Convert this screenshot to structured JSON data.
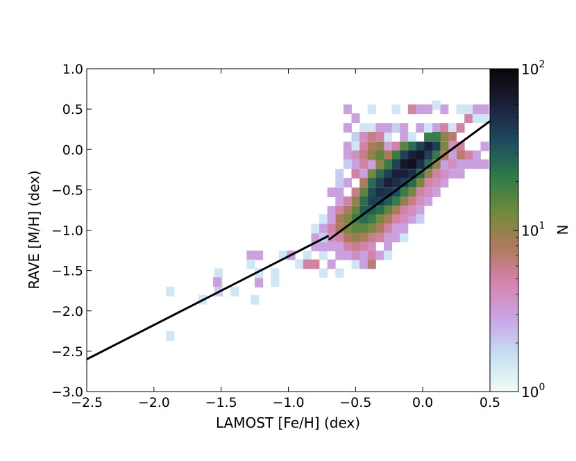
{
  "chart_data": {
    "type": "heatmap",
    "xlabel": "LAMOST [Fe/H] (dex)",
    "ylabel": "RAVE [M/H] (dex)",
    "xlim": [
      -2.5,
      0.5
    ],
    "ylim": [
      -3.0,
      1.0
    ],
    "x_ticks": [
      -2.5,
      -2.0,
      -1.5,
      -1.0,
      -0.5,
      0.0,
      0.5
    ],
    "x_tick_labels": [
      "−2.5",
      "−2.0",
      "−1.5",
      "−1.0",
      "−0.5",
      "0.0",
      "0.5"
    ],
    "y_ticks": [
      -3.0,
      -2.5,
      -2.0,
      -1.5,
      -1.0,
      -0.5,
      0.0,
      0.5,
      1.0
    ],
    "y_tick_labels": [
      "−3.0",
      "−2.5",
      "−2.0",
      "−1.5",
      "−1.0",
      "−0.5",
      "0.0",
      "0.5",
      "1.0"
    ],
    "grid": false,
    "colorbar": {
      "label": "N",
      "scale": "log",
      "range": [
        1,
        100
      ],
      "ticks": [
        {
          "value": 1,
          "base": "10",
          "exp": "0"
        },
        {
          "value": 10,
          "base": "10",
          "exp": "1"
        },
        {
          "value": 100,
          "base": "10",
          "exp": "2"
        }
      ],
      "colormap_stops": [
        "#f0fbf4",
        "#c6e2f4",
        "#c8a6e6",
        "#d884b0",
        "#b07a60",
        "#6f8a3a",
        "#2f7a4a",
        "#1e4a5e",
        "#1c1f3a",
        "#0a0508"
      ]
    },
    "lines": [
      {
        "x": [
          -2.5,
          -0.7
        ],
        "y": [
          -2.6,
          -1.07
        ]
      },
      {
        "x": [
          -0.7,
          0.5
        ],
        "y": [
          -1.12,
          0.35
        ]
      }
    ],
    "bins": [
      [
        -1.88,
        -1.76,
        1.5
      ],
      [
        -1.88,
        -2.31,
        1.5
      ],
      [
        -1.64,
        -1.86,
        1.5
      ],
      [
        -1.52,
        -1.53,
        1.5
      ],
      [
        -1.52,
        -1.64,
        1.5
      ],
      [
        -1.52,
        -1.76,
        2
      ],
      [
        -1.4,
        -1.76,
        1.5
      ],
      [
        -1.28,
        -1.31,
        3
      ],
      [
        -1.22,
        -1.31,
        3
      ],
      [
        -1.22,
        -1.53,
        1.5
      ],
      [
        -1.22,
        -1.65,
        3
      ],
      [
        -1.25,
        -1.86,
        1.5
      ],
      [
        -1.1,
        -1.53,
        1.5
      ],
      [
        -1.1,
        -1.64,
        1.5
      ],
      [
        -1.04,
        -1.31,
        1.5
      ],
      [
        -0.98,
        -1.31,
        3
      ],
      [
        -0.92,
        -1.42,
        1.5
      ],
      [
        -0.86,
        -1.31,
        1.5
      ],
      [
        -0.86,
        -1.42,
        5
      ],
      [
        -0.8,
        -1.42,
        5
      ],
      [
        -0.74,
        -1.31,
        1.5
      ],
      [
        -0.74,
        -1.53,
        1.5
      ],
      [
        -0.8,
        -1.09,
        3
      ],
      [
        -0.8,
        -0.98,
        1.5
      ],
      [
        -0.8,
        -1.2,
        3
      ],
      [
        -0.74,
        -0.86,
        1.5
      ],
      [
        -0.74,
        -1.2,
        3
      ],
      [
        -0.68,
        -0.76,
        3
      ],
      [
        -0.68,
        -1.42,
        3
      ],
      [
        -0.62,
        -1.53,
        1.5
      ],
      [
        -1.28,
        -1.42,
        1.5
      ],
      [
        -0.62,
        -1.31,
        3
      ],
      [
        -0.56,
        -1.2,
        5
      ],
      [
        -0.5,
        -1.42,
        1.5
      ],
      [
        -0.44,
        -1.42,
        3
      ],
      [
        -0.38,
        -1.42,
        7
      ],
      [
        -0.38,
        -1.31,
        5
      ],
      [
        -0.32,
        -1.31,
        3
      ],
      [
        -0.26,
        -1.2,
        3
      ],
      [
        -0.2,
        -1.09,
        3
      ],
      [
        -0.14,
        -1.09,
        1.5
      ],
      [
        -0.62,
        -0.64,
        3
      ],
      [
        -0.62,
        -0.53,
        3
      ],
      [
        -0.56,
        -0.41,
        3
      ],
      [
        -0.5,
        -0.3,
        5
      ],
      [
        -0.44,
        -0.3,
        3
      ],
      [
        -0.38,
        -0.18,
        3
      ],
      [
        -0.32,
        -0.07,
        3
      ],
      [
        -0.26,
        0.04,
        3
      ],
      [
        -0.2,
        0.04,
        5
      ],
      [
        -0.14,
        0.16,
        3
      ],
      [
        -0.08,
        0.16,
        1.5
      ],
      [
        -0.02,
        0.27,
        3
      ],
      [
        0.04,
        0.27,
        1.5
      ],
      [
        0.1,
        0.27,
        3
      ],
      [
        0.16,
        0.27,
        5
      ],
      [
        0.22,
        0.27,
        1.5
      ],
      [
        0.28,
        0.27,
        5
      ],
      [
        0.34,
        0.39,
        5
      ],
      [
        0.4,
        0.39,
        1.5
      ],
      [
        0.46,
        0.39,
        1.5
      ],
      [
        -0.5,
        0.39,
        3
      ],
      [
        -0.38,
        0.5,
        1.5
      ],
      [
        -0.56,
        0.5,
        3
      ],
      [
        -0.2,
        0.5,
        1.5
      ],
      [
        -0.08,
        0.5,
        5
      ],
      [
        -0.02,
        0.5,
        3
      ],
      [
        0.04,
        0.5,
        3
      ],
      [
        0.16,
        0.5,
        3
      ],
      [
        0.28,
        0.5,
        1.5
      ],
      [
        0.4,
        0.5,
        3
      ],
      [
        0.1,
        0.55,
        1.5
      ],
      [
        0.46,
        0.5,
        3
      ],
      [
        0.34,
        0.5,
        1.5
      ],
      [
        -0.44,
        0.27,
        1.5
      ],
      [
        -0.38,
        0.27,
        1.5
      ],
      [
        -0.32,
        0.27,
        3
      ],
      [
        -0.26,
        0.16,
        1.5
      ],
      [
        -0.56,
        -0.07,
        3
      ],
      [
        -0.56,
        0.04,
        3
      ],
      [
        -0.5,
        0.04,
        1.5
      ],
      [
        0.46,
        0.04,
        3
      ],
      [
        0.46,
        -0.18,
        3
      ],
      [
        0.4,
        -0.07,
        3
      ],
      [
        0.4,
        -0.18,
        3
      ],
      [
        0.34,
        -0.07,
        5
      ],
      [
        0.34,
        -0.18,
        3
      ],
      [
        0.28,
        0.04,
        5
      ],
      [
        0.28,
        -0.07,
        7
      ],
      [
        0.28,
        -0.3,
        3
      ],
      [
        0.22,
        0.16,
        7
      ],
      [
        0.22,
        -0.07,
        3
      ],
      [
        0.22,
        -0.3,
        3
      ],
      [
        0.16,
        0.16,
        10
      ],
      [
        0.16,
        -0.18,
        3
      ],
      [
        0.16,
        -0.41,
        3
      ],
      [
        0.1,
        0.16,
        20
      ],
      [
        0.1,
        0.04,
        40
      ],
      [
        0.1,
        -0.07,
        20
      ],
      [
        0.1,
        -0.18,
        10
      ],
      [
        0.1,
        -0.3,
        5
      ],
      [
        0.1,
        -0.53,
        3
      ],
      [
        0.04,
        0.16,
        20
      ],
      [
        0.04,
        0.04,
        60
      ],
      [
        0.04,
        -0.07,
        40
      ],
      [
        0.04,
        -0.18,
        25
      ],
      [
        0.04,
        -0.3,
        10
      ],
      [
        0.04,
        -0.41,
        5
      ],
      [
        0.04,
        -0.64,
        3
      ],
      [
        -0.02,
        0.04,
        40
      ],
      [
        -0.02,
        -0.07,
        70
      ],
      [
        -0.02,
        -0.18,
        50
      ],
      [
        -0.02,
        -0.3,
        25
      ],
      [
        -0.02,
        -0.41,
        12
      ],
      [
        -0.02,
        -0.53,
        5
      ],
      [
        -0.02,
        -0.76,
        3
      ],
      [
        -0.08,
        0.04,
        25
      ],
      [
        -0.08,
        -0.07,
        60
      ],
      [
        -0.08,
        -0.18,
        80
      ],
      [
        -0.08,
        -0.3,
        50
      ],
      [
        -0.08,
        -0.41,
        25
      ],
      [
        -0.08,
        -0.53,
        12
      ],
      [
        -0.08,
        -0.64,
        6
      ],
      [
        -0.08,
        -0.86,
        3
      ],
      [
        -0.14,
        0.04,
        15
      ],
      [
        -0.14,
        -0.07,
        40
      ],
      [
        -0.14,
        -0.18,
        70
      ],
      [
        -0.14,
        -0.3,
        60
      ],
      [
        -0.14,
        -0.41,
        40
      ],
      [
        -0.14,
        -0.53,
        20
      ],
      [
        -0.14,
        -0.64,
        10
      ],
      [
        -0.14,
        -0.76,
        5
      ],
      [
        -0.14,
        -0.98,
        3
      ],
      [
        -0.2,
        -0.07,
        20
      ],
      [
        -0.2,
        -0.18,
        40
      ],
      [
        -0.2,
        -0.3,
        60
      ],
      [
        -0.2,
        -0.41,
        50
      ],
      [
        -0.2,
        -0.53,
        35
      ],
      [
        -0.2,
        -0.64,
        20
      ],
      [
        -0.2,
        -0.76,
        8
      ],
      [
        -0.2,
        -0.86,
        5
      ],
      [
        -0.2,
        -0.98,
        3
      ],
      [
        -0.26,
        -0.07,
        8
      ],
      [
        -0.26,
        -0.18,
        20
      ],
      [
        -0.26,
        -0.3,
        40
      ],
      [
        -0.26,
        -0.41,
        60
      ],
      [
        -0.26,
        -0.53,
        45
      ],
      [
        -0.26,
        -0.64,
        30
      ],
      [
        -0.26,
        -0.76,
        15
      ],
      [
        -0.26,
        -0.86,
        8
      ],
      [
        -0.26,
        -0.98,
        5
      ],
      [
        -0.26,
        -1.09,
        3
      ],
      [
        -0.32,
        -0.18,
        10
      ],
      [
        -0.32,
        -0.3,
        25
      ],
      [
        -0.32,
        -0.41,
        40
      ],
      [
        -0.32,
        -0.53,
        50
      ],
      [
        -0.32,
        -0.64,
        40
      ],
      [
        -0.32,
        -0.76,
        25
      ],
      [
        -0.32,
        -0.86,
        12
      ],
      [
        -0.32,
        -0.98,
        8
      ],
      [
        -0.32,
        -1.09,
        5
      ],
      [
        -0.38,
        -0.3,
        12
      ],
      [
        -0.38,
        -0.41,
        25
      ],
      [
        -0.38,
        -0.53,
        35
      ],
      [
        -0.38,
        -0.64,
        40
      ],
      [
        -0.38,
        -0.76,
        30
      ],
      [
        -0.38,
        -0.86,
        20
      ],
      [
        -0.38,
        -0.98,
        12
      ],
      [
        -0.38,
        -1.09,
        6
      ],
      [
        -0.38,
        -1.2,
        4
      ],
      [
        -0.44,
        -0.41,
        8
      ],
      [
        -0.44,
        -0.53,
        15
      ],
      [
        -0.44,
        -0.64,
        25
      ],
      [
        -0.44,
        -0.76,
        30
      ],
      [
        -0.44,
        -0.86,
        25
      ],
      [
        -0.44,
        -0.98,
        15
      ],
      [
        -0.44,
        -1.09,
        8
      ],
      [
        -0.44,
        -1.2,
        5
      ],
      [
        -0.44,
        -1.31,
        3
      ],
      [
        -0.5,
        -0.53,
        6
      ],
      [
        -0.5,
        -0.64,
        10
      ],
      [
        -0.5,
        -0.76,
        15
      ],
      [
        -0.5,
        -0.86,
        20
      ],
      [
        -0.5,
        -0.98,
        15
      ],
      [
        -0.5,
        -1.09,
        10
      ],
      [
        -0.5,
        -1.2,
        6
      ],
      [
        -0.5,
        -1.31,
        4
      ],
      [
        -0.56,
        -0.64,
        5
      ],
      [
        -0.56,
        -0.76,
        8
      ],
      [
        -0.56,
        -0.86,
        12
      ],
      [
        -0.56,
        -0.98,
        12
      ],
      [
        -0.56,
        -1.09,
        8
      ],
      [
        -0.56,
        -1.31,
        3
      ],
      [
        -0.62,
        -0.76,
        5
      ],
      [
        -0.62,
        -0.86,
        8
      ],
      [
        -0.62,
        -0.98,
        8
      ],
      [
        -0.62,
        -1.09,
        5
      ],
      [
        -0.62,
        -1.2,
        3
      ],
      [
        -0.68,
        -0.86,
        3
      ],
      [
        -0.68,
        -0.98,
        5
      ],
      [
        -0.68,
        -1.09,
        4
      ],
      [
        -0.68,
        -1.2,
        3
      ],
      [
        -0.74,
        -0.98,
        3
      ],
      [
        -0.74,
        -1.09,
        2
      ],
      [
        0.22,
        0.04,
        4
      ],
      [
        0.16,
        0.04,
        12
      ],
      [
        0.16,
        -0.07,
        8
      ],
      [
        -0.26,
        -1.31,
        1.5
      ],
      [
        -0.56,
        0.27,
        3
      ],
      [
        -0.5,
        0.16,
        2
      ],
      [
        -0.44,
        0.16,
        4
      ],
      [
        -0.38,
        0.16,
        6
      ],
      [
        -0.32,
        0.16,
        5
      ],
      [
        -0.32,
        0.04,
        10
      ],
      [
        -0.38,
        0.04,
        8
      ],
      [
        -0.44,
        0.04,
        5
      ],
      [
        -0.26,
        0.27,
        3
      ],
      [
        -0.2,
        0.27,
        2
      ],
      [
        -0.14,
        0.27,
        3
      ],
      [
        -0.5,
        -0.07,
        4
      ],
      [
        -0.44,
        -0.07,
        6
      ],
      [
        -0.38,
        -0.07,
        10
      ],
      [
        -0.32,
        -0.07,
        15
      ],
      [
        -0.5,
        -0.18,
        3
      ],
      [
        -0.44,
        -0.18,
        5
      ],
      [
        -0.56,
        -0.18,
        2
      ],
      [
        0.04,
        0.27,
        1.5
      ],
      [
        0.16,
        -0.3,
        4
      ],
      [
        0.1,
        -0.41,
        4
      ],
      [
        0.22,
        -0.18,
        4
      ],
      [
        -0.02,
        -0.64,
        4
      ],
      [
        -0.08,
        -0.76,
        4
      ],
      [
        -0.14,
        -0.86,
        4
      ],
      [
        -0.02,
        -0.86,
        2
      ],
      [
        0.04,
        -0.53,
        4
      ],
      [
        0.28,
        -0.18,
        3
      ],
      [
        -0.62,
        -0.41,
        2
      ],
      [
        -0.68,
        -0.53,
        3
      ],
      [
        -0.62,
        -0.3,
        2
      ],
      [
        -1.53,
        -1.64,
        3
      ]
    ]
  }
}
